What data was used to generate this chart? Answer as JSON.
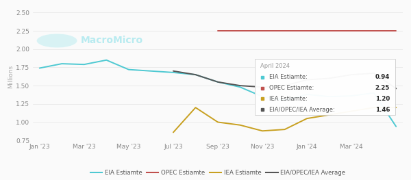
{
  "ylabel": "Millions",
  "ylim": [
    0.75,
    2.5
  ],
  "yticks": [
    0.75,
    1.0,
    1.25,
    1.5,
    1.75,
    2.0,
    2.25,
    2.5
  ],
  "xtick_labels": [
    "Jan '23",
    "Mar '23",
    "May '23",
    "Jul '23",
    "Sep '23",
    "Nov '23",
    "Jan '24",
    "Mar '24"
  ],
  "xtick_positions": [
    0,
    2,
    4,
    6,
    8,
    10,
    12,
    14
  ],
  "xlim": [
    -0.3,
    16.3
  ],
  "eia_x": [
    0,
    1,
    2,
    3,
    4,
    5,
    6,
    7,
    8,
    9,
    10,
    11,
    12,
    13,
    14,
    15,
    16
  ],
  "eia_y": [
    1.74,
    1.8,
    1.79,
    1.85,
    1.72,
    1.7,
    1.68,
    1.65,
    1.55,
    1.48,
    1.35,
    1.3,
    1.38,
    1.35,
    1.36,
    1.4,
    0.94
  ],
  "opec_x": [
    8,
    9,
    10,
    11,
    12,
    13,
    14,
    15,
    16
  ],
  "opec_y": [
    2.25,
    2.25,
    2.25,
    2.25,
    2.25,
    2.25,
    2.25,
    2.25,
    2.25
  ],
  "iea_x": [
    6,
    7,
    8,
    9,
    10,
    11,
    12,
    13,
    14,
    15,
    16
  ],
  "iea_y": [
    0.86,
    1.2,
    1.0,
    0.96,
    0.88,
    0.9,
    1.05,
    1.1,
    1.15,
    1.2,
    1.2
  ],
  "avg_x": [
    6,
    7,
    8,
    9,
    10,
    11,
    12,
    13,
    14,
    15,
    16
  ],
  "avg_y": [
    1.7,
    1.65,
    1.55,
    1.5,
    1.48,
    1.5,
    1.58,
    1.6,
    1.65,
    1.67,
    1.46
  ],
  "eia_color": "#4EC9D2",
  "opec_color": "#C0504D",
  "iea_color": "#C8A020",
  "avg_color": "#555555",
  "bg_color": "#FAFAFA",
  "grid_color": "#E8E8E8",
  "watermark": "MacroMicro",
  "watermark_color": "#B8EBF0",
  "tooltip_title": "April 2024",
  "tooltip_entries": [
    {
      "color": "#4EC9D2",
      "label": "EIA Estiamte:",
      "value": "0.94"
    },
    {
      "color": "#C0504D",
      "label": "OPEC Estiamte:",
      "value": "2.25"
    },
    {
      "color": "#C8A020",
      "label": "IEA Estiamte:",
      "value": "1.20"
    },
    {
      "color": "#555555",
      "label": "EIA/OPEC/IEA Average:",
      "value": "1.46"
    }
  ],
  "legend_labels": [
    "EIA Estiamte",
    "OPEC Estiamte",
    "IEA Estiamte",
    "EIA/OPEC/IEA Average"
  ],
  "legend_colors": [
    "#4EC9D2",
    "#C0504D",
    "#C8A020",
    "#555555"
  ]
}
